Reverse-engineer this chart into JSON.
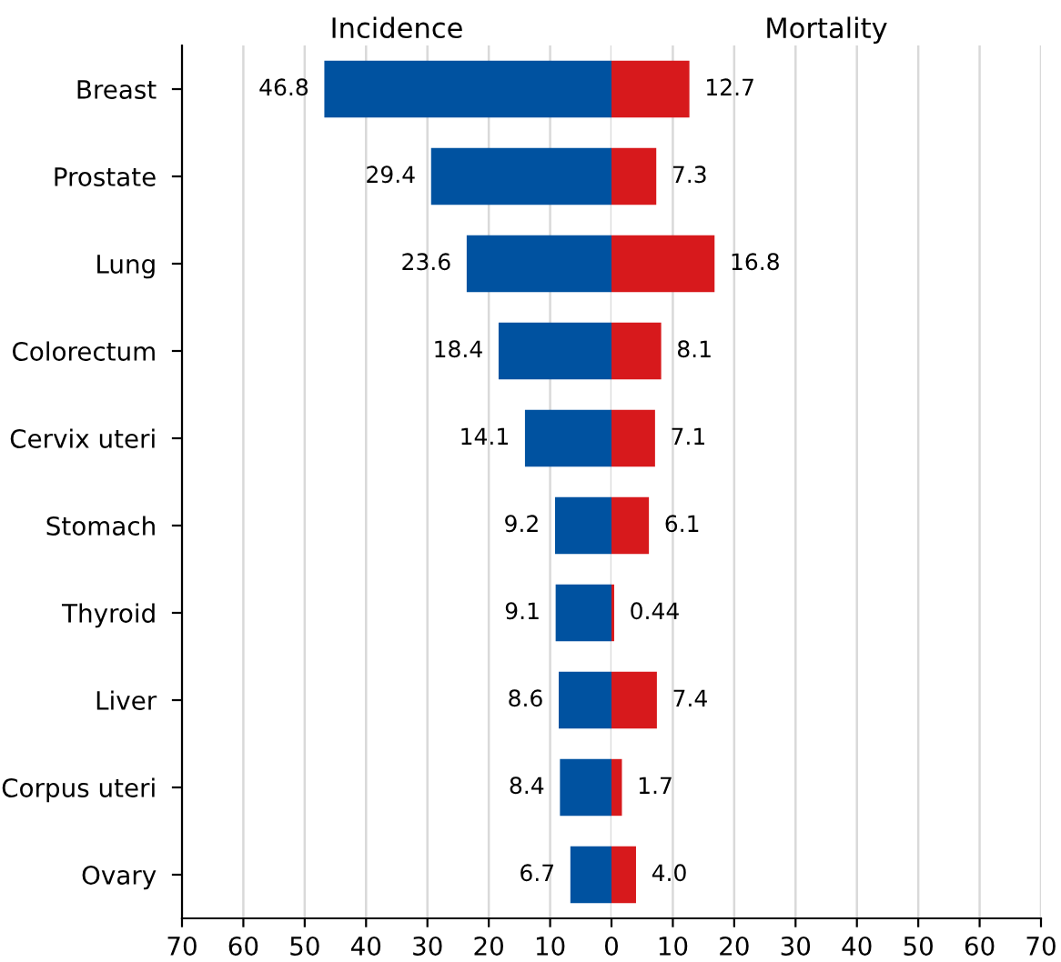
{
  "chart_data": [
    {
      "type": "bar",
      "orientation": "horizontal",
      "title": "Incidence",
      "categories": [
        "Breast",
        "Prostate",
        "Lung",
        "Colorectum",
        "Cervix uteri",
        "Stomach",
        "Thyroid",
        "Liver",
        "Corpus uteri",
        "Ovary"
      ],
      "values": [
        46.8,
        29.4,
        23.6,
        18.4,
        14.1,
        9.2,
        9.1,
        8.6,
        8.4,
        6.7
      ],
      "color": "#0052a0",
      "value_labels": [
        "46.8",
        "29.4",
        "23.6",
        "18.4",
        "14.1",
        "9.2",
        "9.1",
        "8.6",
        "8.4",
        "6.7"
      ],
      "xlim": [
        70,
        0
      ],
      "xticks": [
        70,
        60,
        50,
        40,
        30,
        20,
        10,
        0
      ],
      "grid": "x"
    },
    {
      "type": "bar",
      "orientation": "horizontal",
      "title": "Mortality",
      "categories": [
        null,
        null,
        null,
        null,
        null,
        null,
        null,
        null,
        null,
        null
      ],
      "values": [
        12.7,
        7.3,
        16.8,
        8.1,
        7.1,
        6.1,
        0.44,
        7.4,
        1.7,
        4.0
      ],
      "color": "#d7191c",
      "value_labels": [
        "12.7",
        "7.3",
        "16.8",
        "8.1",
        "7.1",
        "6.1",
        "0.44",
        "7.4",
        "1.7",
        "4.0"
      ],
      "xlim": [
        0,
        70
      ],
      "xticks": [
        10,
        20,
        30,
        40,
        50,
        60,
        70
      ],
      "grid": "x",
      "tick_labels": "x"
    }
  ]
}
